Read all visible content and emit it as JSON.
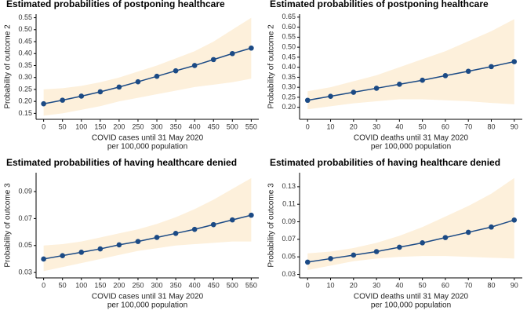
{
  "chart_data": [
    {
      "type": "line",
      "title": "Estimated probabilities of postponing healthcare",
      "xlabel": [
        "COVID cases until 31 May 2020",
        "per 100,000 population"
      ],
      "ylabel": "Probability of outcome 2",
      "x": [
        0,
        50,
        100,
        150,
        200,
        250,
        300,
        350,
        400,
        450,
        500,
        550
      ],
      "values": [
        0.19,
        0.205,
        0.222,
        0.24,
        0.26,
        0.282,
        0.305,
        0.328,
        0.35,
        0.375,
        0.4,
        0.423
      ],
      "lower": [
        0.14,
        0.15,
        0.165,
        0.18,
        0.2,
        0.215,
        0.23,
        0.245,
        0.26,
        0.27,
        0.28,
        0.295
      ],
      "upper": [
        0.25,
        0.255,
        0.265,
        0.28,
        0.3,
        0.325,
        0.35,
        0.38,
        0.41,
        0.45,
        0.5,
        0.55
      ],
      "color": "#1b4a85",
      "band_color": "#fdf0db",
      "xlim": [
        -20,
        570
      ],
      "xticks": [
        0,
        50,
        100,
        150,
        200,
        250,
        300,
        350,
        400,
        450,
        500,
        550
      ],
      "ylim": [
        0.125,
        0.565
      ],
      "yticks": [
        0.15,
        {
          "value": 0.2,
          "label": "0.20"
        },
        0.25,
        {
          "value": 0.3,
          "label": "0.30"
        },
        0.35,
        {
          "value": 0.4,
          "label": "0.40"
        },
        0.45,
        {
          "value": 0.5,
          "label": "0.50"
        },
        0.55
      ]
    },
    {
      "type": "line",
      "title": "Estimated probabilities of postponing healthcare",
      "xlabel": [
        "COVID deaths until 31 May 2020",
        "per 100,000 population"
      ],
      "ylabel": "Probability of outcome 2",
      "x": [
        0,
        10,
        20,
        30,
        40,
        50,
        60,
        70,
        80,
        90
      ],
      "values": [
        0.235,
        0.255,
        0.275,
        0.295,
        0.315,
        0.335,
        0.358,
        0.38,
        0.403,
        0.428
      ],
      "lower": [
        0.19,
        0.205,
        0.22,
        0.23,
        0.24,
        0.24,
        0.235,
        0.23,
        0.222,
        0.215
      ],
      "upper": [
        0.28,
        0.3,
        0.33,
        0.36,
        0.4,
        0.44,
        0.48,
        0.53,
        0.58,
        0.64
      ],
      "color": "#1b4a85",
      "band_color": "#fdf0db",
      "xlim": [
        -3.5,
        93.5
      ],
      "xticks": [
        0,
        10,
        20,
        30,
        40,
        50,
        60,
        70,
        80,
        90
      ],
      "ylim": [
        0.14,
        0.665
      ],
      "yticks": [
        {
          "value": 0.2,
          "label": "0.20"
        },
        0.25,
        {
          "value": 0.3,
          "label": "0.30"
        },
        0.35,
        {
          "value": 0.4,
          "label": "0.40"
        },
        0.45,
        {
          "value": 0.5,
          "label": "0.50"
        },
        0.55,
        {
          "value": 0.6,
          "label": "0.60"
        },
        0.65
      ]
    },
    {
      "type": "line",
      "title": "Estimated probabilities of having healthcare denied",
      "xlabel": [
        "COVID cases until 31 May 2020",
        "per 100,000 population"
      ],
      "ylabel": "Probability of outcome 3",
      "x": [
        0,
        50,
        100,
        150,
        200,
        250,
        300,
        350,
        400,
        450,
        500,
        550
      ],
      "values": [
        0.04,
        0.0425,
        0.045,
        0.0475,
        0.0505,
        0.053,
        0.056,
        0.059,
        0.062,
        0.0655,
        0.069,
        0.0725
      ],
      "lower": [
        0.031,
        0.034,
        0.037,
        0.04,
        0.043,
        0.046,
        0.048,
        0.05,
        0.051,
        0.052,
        0.053,
        0.053
      ],
      "upper": [
        0.05,
        0.051,
        0.053,
        0.056,
        0.059,
        0.062,
        0.066,
        0.071,
        0.077,
        0.084,
        0.092,
        0.1
      ],
      "color": "#1b4a85",
      "band_color": "#fdf0db",
      "xlim": [
        -20,
        570
      ],
      "xticks": [
        0,
        50,
        100,
        150,
        200,
        250,
        300,
        350,
        400,
        450,
        500,
        550
      ],
      "ylim": [
        0.026,
        0.104
      ],
      "yticks": [
        0.03,
        0.05,
        0.07,
        0.09
      ]
    },
    {
      "type": "line",
      "title": "Estimated probabilities of having healthcare denied",
      "xlabel": [
        "COVID deaths until 31 May 2020",
        "per 100,000 population"
      ],
      "ylabel": "Probability of outcome 3",
      "x": [
        0,
        10,
        20,
        30,
        40,
        50,
        60,
        70,
        80,
        90
      ],
      "values": [
        0.044,
        0.048,
        0.052,
        0.056,
        0.061,
        0.066,
        0.072,
        0.078,
        0.084,
        0.092
      ],
      "lower": [
        0.035,
        0.04,
        0.045,
        0.048,
        0.05,
        0.051,
        0.051,
        0.05,
        0.049,
        0.048
      ],
      "upper": [
        0.054,
        0.056,
        0.06,
        0.066,
        0.074,
        0.084,
        0.096,
        0.108,
        0.122,
        0.14
      ],
      "color": "#1b4a85",
      "band_color": "#fdf0db",
      "xlim": [
        -3.5,
        93.5
      ],
      "xticks": [
        0,
        10,
        20,
        30,
        40,
        50,
        60,
        70,
        80,
        90
      ],
      "ylim": [
        0.026,
        0.146
      ],
      "yticks": [
        0.03,
        0.05,
        0.07,
        0.09,
        0.11,
        0.13
      ]
    }
  ]
}
